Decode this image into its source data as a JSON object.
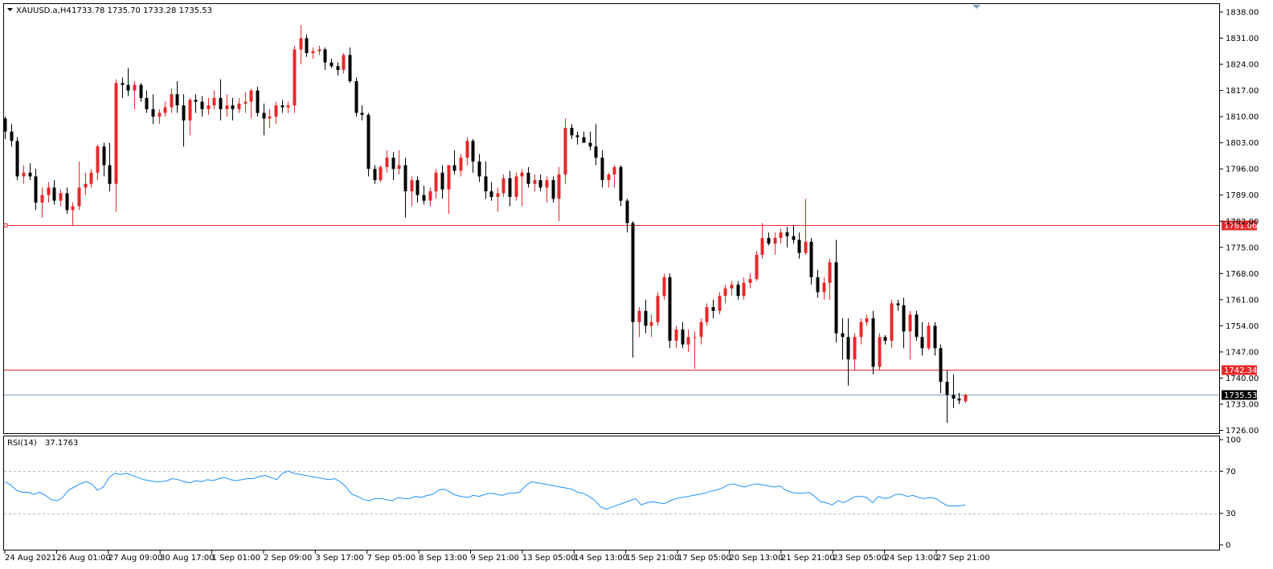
{
  "header": {
    "symbol": "XAUUSD.a,H4",
    "ohlc": "1733.78 1735.70 1733.28 1735.53"
  },
  "colors": {
    "bull": "#E8282B",
    "bear": "#000000",
    "level_line": "#E8282B",
    "price_line": "#7A9FC4",
    "rsi_line": "#1E90FF"
  },
  "chart_data": [
    {
      "type": "candlestick",
      "name": "XAUUSD.a,H4",
      "ylim": [
        1724,
        1840
      ],
      "y_ticks": [
        "1838.00",
        "1831.00",
        "1824.00",
        "1817.00",
        "1810.00",
        "1803.00",
        "1796.00",
        "1789.00",
        "1782.00",
        "1775.00",
        "1768.00",
        "1761.00",
        "1754.00",
        "1747.00",
        "1740.00",
        "1733.00",
        "1726.00"
      ],
      "x_ticks": [
        "24 Aug 2021",
        "26 Aug 01:00",
        "27 Aug 09:00",
        "30 Aug 17:00",
        "1 Sep 01:00",
        "2 Sep 09:00",
        "3 Sep 17:00",
        "7 Sep 05:00",
        "8 Sep 13:00",
        "9 Sep 21:00",
        "13 Sep 05:00",
        "14 Sep 13:00",
        "15 Sep 21:00",
        "17 Sep 05:00",
        "20 Sep 13:00",
        "21 Sep 21:00",
        "23 Sep 05:00",
        "24 Sep 13:00",
        "27 Sep 21:00"
      ],
      "levels": [
        {
          "label": "1781.06",
          "value": 1781.06
        },
        {
          "label": "1742.34",
          "value": 1742.34
        }
      ],
      "last_price": {
        "label": "1735.53",
        "value": 1735.53
      },
      "ohlc": [
        [
          1809.5,
          1810.0,
          1804.0,
          1806.0
        ],
        [
          1806.0,
          1808.0,
          1802.0,
          1803.5
        ],
        [
          1803.5,
          1804.5,
          1793.0,
          1794.0
        ],
        [
          1794.0,
          1797.0,
          1792.0,
          1795.0
        ],
        [
          1795.0,
          1797.5,
          1793.0,
          1794.0
        ],
        [
          1794.0,
          1796.0,
          1785.0,
          1787.0
        ],
        [
          1787.0,
          1791.0,
          1783.0,
          1789.0
        ],
        [
          1789.0,
          1792.5,
          1787.0,
          1791.0
        ],
        [
          1791.0,
          1793.0,
          1786.5,
          1787.5
        ],
        [
          1787.5,
          1790.5,
          1786.0,
          1789.5
        ],
        [
          1789.5,
          1791.0,
          1784.0,
          1785.0
        ],
        [
          1785.0,
          1787.0,
          1781.0,
          1786.0
        ],
        [
          1786.0,
          1798.0,
          1785.0,
          1791.0
        ],
        [
          1791.0,
          1795.0,
          1789.0,
          1792.0
        ],
        [
          1792.0,
          1796.0,
          1791.0,
          1795.0
        ],
        [
          1795.0,
          1802.5,
          1793.0,
          1802.0
        ],
        [
          1802.0,
          1803.0,
          1794.0,
          1797.0
        ],
        [
          1797.0,
          1803.0,
          1790.0,
          1792.0
        ],
        [
          1792.0,
          1820.0,
          1784.5,
          1819.0
        ],
        [
          1819.0,
          1820.5,
          1815.0,
          1818.5
        ],
        [
          1818.5,
          1823.0,
          1815.5,
          1817.0
        ],
        [
          1817.0,
          1819.5,
          1812.0,
          1818.5
        ],
        [
          1818.5,
          1819.0,
          1814.0,
          1815.0
        ],
        [
          1815.0,
          1817.0,
          1811.0,
          1812.0
        ],
        [
          1812.0,
          1816.0,
          1808.0,
          1810.0
        ],
        [
          1810.0,
          1812.0,
          1808.0,
          1811.0
        ],
        [
          1811.0,
          1814.0,
          1810.0,
          1812.5
        ],
        [
          1812.5,
          1817.5,
          1811.0,
          1816.0
        ],
        [
          1816.0,
          1819.5,
          1811.0,
          1813.0
        ],
        [
          1813.0,
          1816.0,
          1802.0,
          1809.0
        ],
        [
          1809.0,
          1815.0,
          1805.0,
          1814.5
        ],
        [
          1814.5,
          1816.0,
          1811.0,
          1814.0
        ],
        [
          1814.0,
          1815.5,
          1810.0,
          1812.0
        ],
        [
          1812.0,
          1815.0,
          1810.5,
          1813.0
        ],
        [
          1813.0,
          1817.0,
          1812.0,
          1815.0
        ],
        [
          1815.0,
          1820.0,
          1809.0,
          1812.0
        ],
        [
          1812.0,
          1816.0,
          1810.0,
          1813.0
        ],
        [
          1813.0,
          1815.0,
          1809.0,
          1812.0
        ],
        [
          1812.0,
          1815.0,
          1811.0,
          1813.5
        ],
        [
          1813.5,
          1816.5,
          1811.0,
          1814.0
        ],
        [
          1814.0,
          1817.5,
          1809.5,
          1817.0
        ],
        [
          1817.0,
          1818.0,
          1810.0,
          1811.0
        ],
        [
          1811.0,
          1813.5,
          1805.0,
          1809.5
        ],
        [
          1809.5,
          1812.0,
          1807.0,
          1810.0
        ],
        [
          1810.0,
          1814.0,
          1808.0,
          1813.0
        ],
        [
          1813.0,
          1814.5,
          1811.0,
          1812.5
        ],
        [
          1812.5,
          1814.0,
          1811.0,
          1813.0
        ],
        [
          1813.0,
          1829.0,
          1811.0,
          1828.0
        ],
        [
          1828.0,
          1834.5,
          1824.0,
          1831.0
        ],
        [
          1831.0,
          1832.0,
          1826.0,
          1827.0
        ],
        [
          1827.0,
          1828.5,
          1825.5,
          1827.5
        ],
        [
          1827.5,
          1829.0,
          1826.5,
          1828.0
        ],
        [
          1828.0,
          1828.5,
          1822.5,
          1824.5
        ],
        [
          1824.5,
          1825.5,
          1823.0,
          1823.5
        ],
        [
          1823.5,
          1824.5,
          1821.0,
          1822.5
        ],
        [
          1822.5,
          1827.0,
          1821.5,
          1826.5
        ],
        [
          1826.5,
          1828.5,
          1819.0,
          1819.5
        ],
        [
          1819.5,
          1820.5,
          1810.0,
          1811.0
        ],
        [
          1811.0,
          1813.0,
          1809.0,
          1810.5
        ],
        [
          1810.5,
          1811.0,
          1794.0,
          1796.0
        ],
        [
          1796.0,
          1797.0,
          1792.0,
          1793.0
        ],
        [
          1793.0,
          1797.0,
          1792.5,
          1796.5
        ],
        [
          1796.5,
          1801.0,
          1795.0,
          1799.0
        ],
        [
          1799.0,
          1800.5,
          1793.0,
          1796.0
        ],
        [
          1796.0,
          1801.0,
          1794.5,
          1797.0
        ],
        [
          1797.0,
          1799.0,
          1783.0,
          1790.0
        ],
        [
          1790.0,
          1794.0,
          1786.0,
          1793.0
        ],
        [
          1793.0,
          1794.0,
          1787.0,
          1789.0
        ],
        [
          1789.0,
          1791.5,
          1786.5,
          1787.5
        ],
        [
          1787.5,
          1791.0,
          1786.0,
          1790.0
        ],
        [
          1790.0,
          1796.0,
          1788.0,
          1795.0
        ],
        [
          1795.0,
          1797.0,
          1788.0,
          1790.5
        ],
        [
          1790.5,
          1797.0,
          1784.0,
          1797.0
        ],
        [
          1797.0,
          1801.0,
          1794.5,
          1795.5
        ],
        [
          1795.5,
          1800.0,
          1794.0,
          1799.0
        ],
        [
          1799.0,
          1804.5,
          1797.0,
          1803.5
        ],
        [
          1803.5,
          1804.0,
          1795.0,
          1798.0
        ],
        [
          1798.0,
          1800.0,
          1792.5,
          1794.0
        ],
        [
          1794.0,
          1798.0,
          1788.0,
          1790.0
        ],
        [
          1790.0,
          1792.5,
          1787.5,
          1788.5
        ],
        [
          1788.5,
          1791.0,
          1784.5,
          1789.5
        ],
        [
          1789.5,
          1794.5,
          1788.5,
          1793.5
        ],
        [
          1793.5,
          1795.5,
          1786.0,
          1788.5
        ],
        [
          1788.5,
          1795.0,
          1787.5,
          1794.0
        ],
        [
          1794.0,
          1796.0,
          1786.0,
          1795.0
        ],
        [
          1795.0,
          1796.5,
          1791.0,
          1792.0
        ],
        [
          1792.0,
          1794.5,
          1790.0,
          1793.0
        ],
        [
          1793.0,
          1794.5,
          1790.0,
          1791.0
        ],
        [
          1791.0,
          1794.0,
          1787.0,
          1793.0
        ],
        [
          1793.0,
          1794.0,
          1787.0,
          1788.0
        ],
        [
          1788.0,
          1796.5,
          1782.0,
          1794.5
        ],
        [
          1794.5,
          1809.5,
          1792.0,
          1807.0
        ],
        [
          1807.0,
          1808.0,
          1804.0,
          1805.0
        ],
        [
          1805.0,
          1806.0,
          1802.5,
          1804.5
        ],
        [
          1804.5,
          1806.0,
          1803.0,
          1803.0
        ],
        [
          1803.0,
          1806.0,
          1801.0,
          1802.0
        ],
        [
          1802.0,
          1808.0,
          1797.0,
          1799.0
        ],
        [
          1799.0,
          1801.0,
          1791.0,
          1793.0
        ],
        [
          1793.0,
          1795.0,
          1791.0,
          1794.5
        ],
        [
          1794.5,
          1797.0,
          1791.0,
          1796.5
        ],
        [
          1796.5,
          1797.0,
          1786.0,
          1787.5
        ],
        [
          1787.5,
          1788.0,
          1779.0,
          1781.5
        ],
        [
          1781.5,
          1782.0,
          1745.5,
          1755.0
        ],
        [
          1755.0,
          1759.0,
          1751.0,
          1758.0
        ],
        [
          1758.0,
          1761.0,
          1752.0,
          1754.0
        ],
        [
          1754.0,
          1757.0,
          1751.0,
          1755.0
        ],
        [
          1755.0,
          1763.0,
          1754.0,
          1762.0
        ],
        [
          1762.0,
          1768.0,
          1761.0,
          1767.0
        ],
        [
          1767.0,
          1768.0,
          1748.0,
          1750.0
        ],
        [
          1750.0,
          1754.0,
          1748.0,
          1753.0
        ],
        [
          1753.0,
          1755.0,
          1748.0,
          1749.0
        ],
        [
          1749.0,
          1753.0,
          1747.0,
          1751.0
        ],
        [
          1751.0,
          1752.5,
          1742.5,
          1751.0
        ],
        [
          1751.0,
          1756.0,
          1749.0,
          1755.0
        ],
        [
          1755.0,
          1760.0,
          1754.0,
          1759.0
        ],
        [
          1759.0,
          1761.0,
          1756.0,
          1758.0
        ],
        [
          1758.0,
          1763.0,
          1757.0,
          1762.0
        ],
        [
          1762.0,
          1765.0,
          1760.0,
          1764.0
        ],
        [
          1764.0,
          1766.0,
          1762.0,
          1765.0
        ],
        [
          1765.0,
          1766.0,
          1761.0,
          1762.0
        ],
        [
          1762.0,
          1767.0,
          1761.0,
          1765.5
        ],
        [
          1765.5,
          1768.0,
          1764.0,
          1766.5
        ],
        [
          1766.5,
          1774.0,
          1766.0,
          1773.0
        ],
        [
          1773.0,
          1781.5,
          1772.0,
          1777.5
        ],
        [
          1777.5,
          1779.0,
          1775.5,
          1776.0
        ],
        [
          1776.0,
          1779.0,
          1773.0,
          1777.5
        ],
        [
          1777.5,
          1780.0,
          1776.0,
          1779.0
        ],
        [
          1779.0,
          1780.5,
          1775.0,
          1778.0
        ],
        [
          1778.0,
          1781.0,
          1776.0,
          1777.0
        ],
        [
          1777.0,
          1779.0,
          1772.0,
          1773.5
        ],
        [
          1773.5,
          1788.0,
          1773.0,
          1776.5
        ],
        [
          1776.5,
          1777.5,
          1765.0,
          1767.0
        ],
        [
          1767.0,
          1769.0,
          1761.5,
          1763.0
        ],
        [
          1763.0,
          1767.0,
          1761.0,
          1765.5
        ],
        [
          1765.5,
          1772.0,
          1761.0,
          1771.0
        ],
        [
          1771.0,
          1777.0,
          1749.5,
          1752.0
        ],
        [
          1752.0,
          1756.0,
          1745.0,
          1751.0
        ],
        [
          1751.0,
          1756.0,
          1738.0,
          1745.0
        ],
        [
          1745.0,
          1752.0,
          1742.0,
          1751.0
        ],
        [
          1751.0,
          1756.0,
          1749.0,
          1755.0
        ],
        [
          1755.0,
          1757.0,
          1754.0,
          1756.0
        ],
        [
          1756.0,
          1758.0,
          1741.0,
          1743.0
        ],
        [
          1743.0,
          1752.0,
          1742.0,
          1751.0
        ],
        [
          1751.0,
          1751.5,
          1749.0,
          1750.0
        ],
        [
          1750.0,
          1761.0,
          1748.0,
          1760.0
        ],
        [
          1760.0,
          1761.0,
          1758.0,
          1759.5
        ],
        [
          1759.5,
          1761.5,
          1748.0,
          1752.5
        ],
        [
          1752.5,
          1758.0,
          1745.0,
          1757.0
        ],
        [
          1757.0,
          1758.0,
          1750.0,
          1751.0
        ],
        [
          1751.0,
          1755.0,
          1746.0,
          1748.0
        ],
        [
          1748.0,
          1755.0,
          1747.5,
          1754.0
        ],
        [
          1754.0,
          1755.0,
          1746.0,
          1748.0
        ],
        [
          1748.0,
          1749.0,
          1736.0,
          1739.0
        ],
        [
          1739.0,
          1742.0,
          1728.0,
          1735.5
        ],
        [
          1735.5,
          1741.0,
          1732.0,
          1734.5
        ],
        [
          1734.5,
          1736.0,
          1733.0,
          1734.0
        ],
        [
          1733.78,
          1735.7,
          1733.28,
          1735.53
        ]
      ]
    },
    {
      "type": "line",
      "name": "RSI(14)",
      "value_label": "37.1763",
      "ylim": [
        0,
        100
      ],
      "y_ticks": [
        "100",
        "70",
        "30",
        "0"
      ],
      "levels": [
        70,
        30
      ],
      "values": [
        60,
        57,
        52,
        50,
        50,
        48,
        50,
        47,
        43,
        42,
        45,
        52,
        55,
        58,
        60,
        58,
        52,
        55,
        64,
        68,
        67,
        68,
        66,
        64,
        62,
        61,
        60,
        60,
        61,
        63,
        62,
        60,
        59,
        61,
        60,
        62,
        61,
        63,
        64,
        62,
        61,
        62,
        63,
        63,
        65,
        66,
        64,
        62,
        68,
        70,
        68,
        67,
        66,
        65,
        64,
        63,
        62,
        63,
        60,
        55,
        48,
        46,
        43,
        42,
        44,
        44,
        43,
        42,
        45,
        44,
        44,
        46,
        45,
        47,
        48,
        52,
        53,
        50,
        47,
        46,
        45,
        47,
        46,
        48,
        49,
        48,
        47,
        49,
        49,
        50,
        56,
        60,
        59,
        58,
        57,
        56,
        55,
        54,
        53,
        50,
        49,
        46,
        42,
        36,
        34,
        36,
        38,
        40,
        42,
        44,
        38,
        40,
        41,
        40,
        39,
        42,
        44,
        45,
        46,
        47,
        48,
        49,
        51,
        52,
        54,
        57,
        58,
        56,
        55,
        57,
        58,
        57,
        56,
        55,
        56,
        52,
        50,
        49,
        49,
        50,
        46,
        41,
        40,
        38,
        42,
        40,
        43,
        46,
        46,
        45,
        40,
        46,
        44,
        45,
        48,
        48,
        46,
        47,
        45,
        44,
        45,
        44,
        40,
        37,
        37,
        37,
        38
      ]
    }
  ]
}
